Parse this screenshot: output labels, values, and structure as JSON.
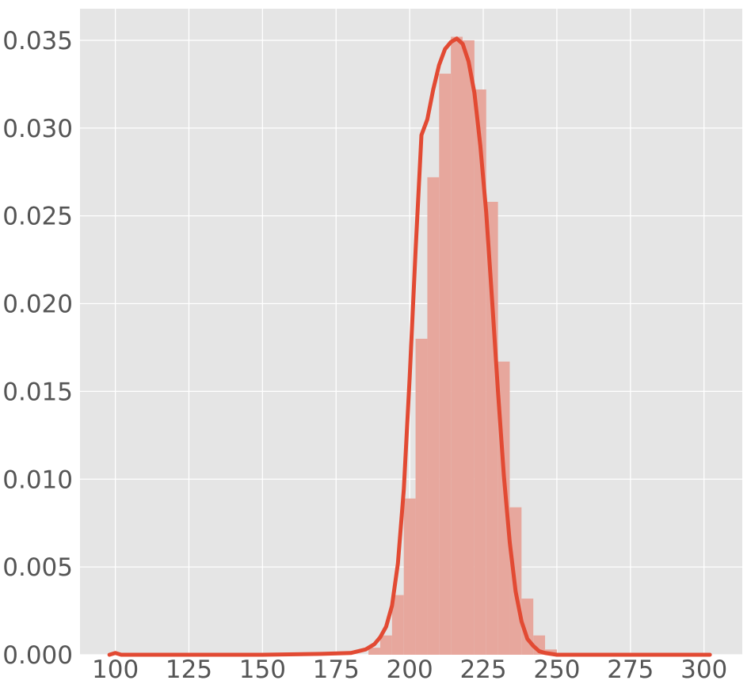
{
  "chart_data": {
    "type": "histogram",
    "title": "",
    "xlabel": "",
    "ylabel": "",
    "xlim": [
      88,
      313
    ],
    "ylim": [
      0,
      0.0368
    ],
    "grid": true,
    "legend": "none",
    "colors": {
      "plot_background": "#E5E5E5",
      "grid": "#FFFFFF",
      "bars": "#E7A79D",
      "kde_line": "#E24A33",
      "tick_text": "#555555"
    },
    "x_ticks": [
      100,
      125,
      150,
      175,
      200,
      225,
      250,
      275,
      300
    ],
    "x_tick_labels": [
      "100",
      "125",
      "150",
      "175",
      "200",
      "225",
      "250",
      "275",
      "300"
    ],
    "y_ticks": [
      0.0,
      0.005,
      0.01,
      0.015,
      0.02,
      0.025,
      0.03,
      0.035
    ],
    "y_tick_labels": [
      "0.000",
      "0.005",
      "0.010",
      "0.015",
      "0.020",
      "0.025",
      "0.030",
      "0.035"
    ],
    "histogram_bins": [
      {
        "x0": 98,
        "x1": 102,
        "density": 3e-05
      },
      {
        "x0": 186,
        "x1": 190,
        "density": 0.0004
      },
      {
        "x0": 190,
        "x1": 194,
        "density": 0.0011
      },
      {
        "x0": 194,
        "x1": 198,
        "density": 0.0034
      },
      {
        "x0": 198,
        "x1": 202,
        "density": 0.0089
      },
      {
        "x0": 202,
        "x1": 206,
        "density": 0.018
      },
      {
        "x0": 206,
        "x1": 210,
        "density": 0.0272
      },
      {
        "x0": 210,
        "x1": 214,
        "density": 0.0331
      },
      {
        "x0": 214,
        "x1": 218,
        "density": 0.0352
      },
      {
        "x0": 218,
        "x1": 222,
        "density": 0.035
      },
      {
        "x0": 222,
        "x1": 226,
        "density": 0.0322
      },
      {
        "x0": 226,
        "x1": 230,
        "density": 0.0258
      },
      {
        "x0": 230,
        "x1": 234,
        "density": 0.0167
      },
      {
        "x0": 234,
        "x1": 238,
        "density": 0.0084
      },
      {
        "x0": 238,
        "x1": 242,
        "density": 0.0032
      },
      {
        "x0": 242,
        "x1": 246,
        "density": 0.0011
      },
      {
        "x0": 246,
        "x1": 250,
        "density": 0.0003
      }
    ],
    "kde_line": {
      "x": [
        98,
        100,
        102,
        105,
        150,
        170,
        180,
        185,
        188,
        190,
        192,
        194,
        196,
        198,
        200,
        202,
        204,
        206,
        208,
        210,
        212,
        214,
        216,
        218,
        220,
        222,
        224,
        226,
        228,
        230,
        232,
        234,
        236,
        238,
        240,
        242,
        244,
        246,
        250,
        260,
        300,
        302
      ],
      "y": [
        0.0,
        0.0001,
        0.0,
        0.0,
        0.0,
        5e-05,
        0.0001,
        0.0003,
        0.0006,
        0.001,
        0.0016,
        0.0028,
        0.0052,
        0.0094,
        0.0158,
        0.023,
        0.0296,
        0.0305,
        0.0322,
        0.0336,
        0.0345,
        0.0349,
        0.0351,
        0.0348,
        0.0338,
        0.032,
        0.029,
        0.0252,
        0.0202,
        0.015,
        0.0102,
        0.0064,
        0.0036,
        0.0019,
        0.0009,
        0.0005,
        0.0002,
        0.0001,
        0.0,
        0.0,
        0.0,
        0.0
      ]
    }
  }
}
